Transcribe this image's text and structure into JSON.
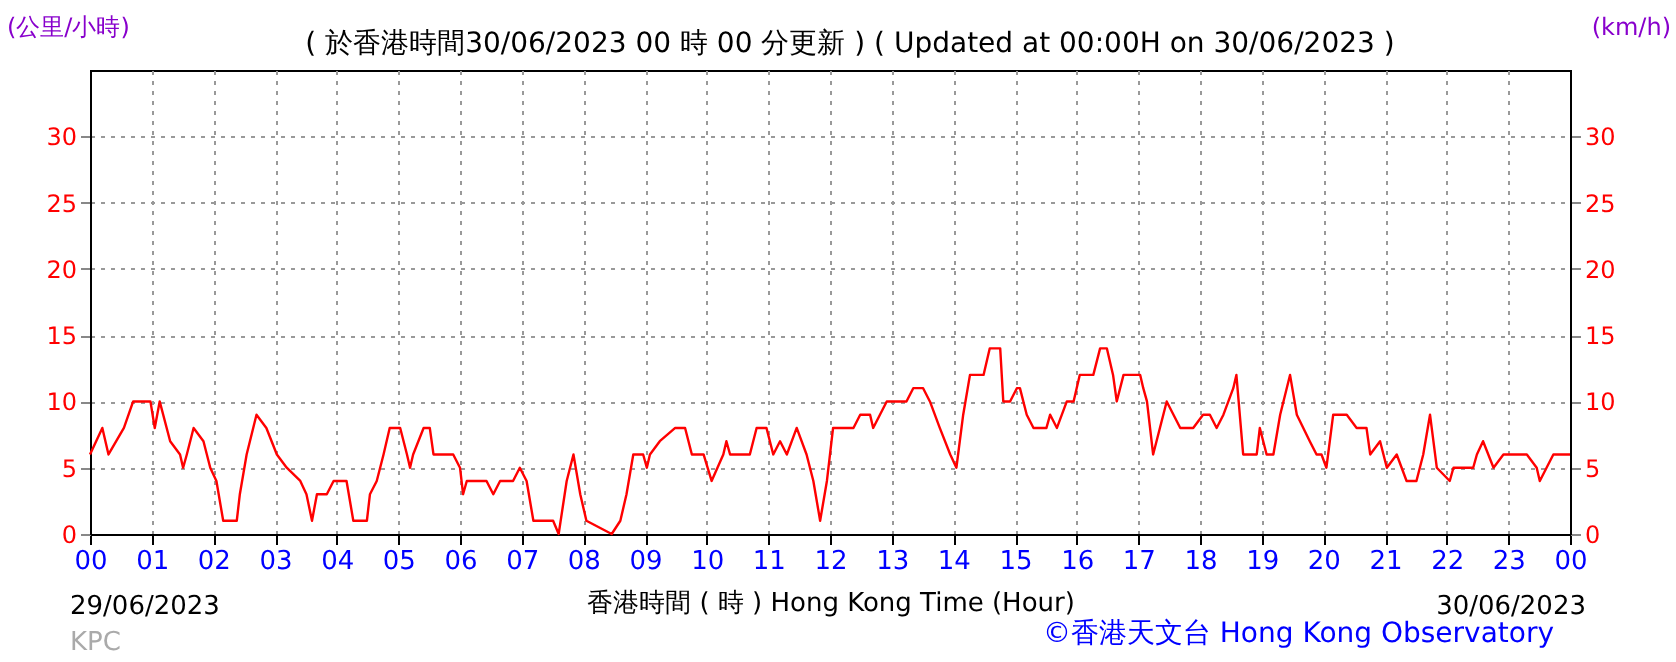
{
  "chart_data": {
    "type": "line",
    "title": "( 於香港時間30/06/2023 00 時 00 分更新 ) ( Updated at 00:00H on 30/06/2023 )",
    "ylabel": "(公里/小時)",
    "y2label": "(km/h)",
    "xlabel": "香港時間 ( 時 )  Hong Kong Time (Hour)",
    "annotations": [
      "29/06/2023",
      "30/06/2023",
      "KPC",
      "©香港天文台 Hong Kong Observatory"
    ],
    "x": [
      0.0,
      0.2,
      0.3,
      0.55,
      0.7,
      0.98,
      1.05,
      1.13,
      1.3,
      1.46,
      1.51,
      1.57,
      1.68,
      1.84,
      1.95,
      2.05,
      2.16,
      2.38,
      2.43,
      2.54,
      2.7,
      2.86,
      3.03,
      3.19,
      3.41,
      3.51,
      3.6,
      3.68,
      3.84,
      3.95,
      4.16,
      4.27,
      4.49,
      4.54,
      4.65,
      4.76,
      4.86,
      5.03,
      5.14,
      5.19,
      5.24,
      5.41,
      5.51,
      5.57,
      5.89,
      6.0,
      6.05,
      6.11,
      6.43,
      6.54,
      6.65,
      6.86,
      6.97,
      7.08,
      7.19,
      7.51,
      7.6,
      7.73,
      7.84,
      7.95,
      8.05,
      8.46,
      8.6,
      8.7,
      8.81,
      8.97,
      9.03,
      9.08,
      9.24,
      9.49,
      9.65,
      9.76,
      9.95,
      10.08,
      10.27,
      10.32,
      10.38,
      10.7,
      10.81,
      10.97,
      11.08,
      11.19,
      11.3,
      11.46,
      11.62,
      11.73,
      11.84,
      11.95,
      12.05,
      12.38,
      12.49,
      12.65,
      12.7,
      12.81,
      12.92,
      13.24,
      13.35,
      13.51,
      13.62,
      13.78,
      13.95,
      14.05,
      14.16,
      14.27,
      14.49,
      14.59,
      14.76,
      14.81,
      14.92,
      15.03,
      15.08,
      15.19,
      15.3,
      15.51,
      15.57,
      15.68,
      15.84,
      15.95,
      16.05,
      16.27,
      16.38,
      16.49,
      16.59,
      16.65,
      16.76,
      17.03,
      17.08,
      17.14,
      17.24,
      17.35,
      17.46,
      17.57,
      17.68,
      17.89,
      18.05,
      18.16,
      18.27,
      18.38,
      18.54,
      18.59,
      18.7,
      18.92,
      18.97,
      19.08,
      19.19,
      19.3,
      19.46,
      19.57,
      19.78,
      19.89,
      19.97,
      20.05,
      20.16,
      20.38,
      20.54,
      20.7,
      20.76,
      20.92,
      21.03,
      21.19,
      21.35,
      21.51,
      21.62,
      21.73,
      21.84,
      22.05,
      22.11,
      22.43,
      22.49,
      22.59,
      22.76,
      22.92,
      23.19,
      23.3,
      23.46,
      23.51,
      23.62,
      23.73,
      24.0
    ],
    "series": [
      {
        "color": "#ff0000",
        "values": [
          6,
          8,
          6,
          8,
          10,
          10,
          8,
          10,
          7,
          6,
          5,
          6,
          8,
          7,
          5,
          4,
          1,
          1,
          3,
          6,
          9,
          8,
          6,
          5,
          4,
          3,
          1,
          3,
          3,
          4,
          4,
          1,
          1,
          3,
          4,
          6,
          8,
          8,
          6,
          5,
          6,
          8,
          8,
          6,
          6,
          5,
          3,
          4,
          4,
          3,
          4,
          4,
          5,
          4,
          1,
          1,
          0,
          4,
          6,
          3,
          1,
          0,
          1,
          3,
          6,
          6,
          5,
          6,
          7,
          8,
          8,
          6,
          6,
          4,
          6,
          7,
          6,
          6,
          8,
          8,
          6,
          7,
          6,
          8,
          6,
          4,
          1,
          4,
          8,
          8,
          9,
          9,
          8,
          9,
          10,
          10,
          11,
          11,
          10,
          8,
          6,
          5,
          9,
          12,
          12,
          14,
          14,
          10,
          10,
          11,
          11,
          9,
          8,
          8,
          9,
          8,
          10,
          10,
          12,
          12,
          14,
          14,
          12,
          10,
          12,
          12,
          11,
          10,
          6,
          8,
          10,
          9,
          8,
          8,
          9,
          9,
          8,
          9,
          11,
          12,
          6,
          6,
          8,
          6,
          6,
          9,
          12,
          9,
          7,
          6,
          6,
          5,
          9,
          9,
          8,
          8,
          6,
          7,
          5,
          6,
          4,
          4,
          6,
          9,
          5,
          4,
          5,
          5,
          6,
          7,
          5,
          6,
          6,
          6,
          5,
          4,
          5,
          6,
          6
        ]
      }
    ],
    "xlim": [
      0,
      24
    ],
    "xticks": [
      {
        "value": 0,
        "label": "00"
      },
      {
        "value": 1,
        "label": "01"
      },
      {
        "value": 2,
        "label": "02"
      },
      {
        "value": 3,
        "label": "03"
      },
      {
        "value": 4,
        "label": "04"
      },
      {
        "value": 5,
        "label": "05"
      },
      {
        "value": 6,
        "label": "06"
      },
      {
        "value": 7,
        "label": "07"
      },
      {
        "value": 8,
        "label": "08"
      },
      {
        "value": 9,
        "label": "09"
      },
      {
        "value": 10,
        "label": "10"
      },
      {
        "value": 11,
        "label": "11"
      },
      {
        "value": 12,
        "label": "12"
      },
      {
        "value": 13,
        "label": "13"
      },
      {
        "value": 14,
        "label": "14"
      },
      {
        "value": 15,
        "label": "15"
      },
      {
        "value": 16,
        "label": "16"
      },
      {
        "value": 17,
        "label": "17"
      },
      {
        "value": 18,
        "label": "18"
      },
      {
        "value": 19,
        "label": "19"
      },
      {
        "value": 20,
        "label": "20"
      },
      {
        "value": 21,
        "label": "21"
      },
      {
        "value": 22,
        "label": "22"
      },
      {
        "value": 23,
        "label": "23"
      },
      {
        "value": 24,
        "label": "00"
      }
    ],
    "ylim": [
      0,
      35
    ],
    "yticks": [
      0,
      5,
      10,
      15,
      20,
      25,
      30
    ],
    "y2lim": [
      0,
      35
    ],
    "y2ticks": [
      0,
      5,
      10,
      15,
      20,
      25,
      30
    ],
    "grid": true,
    "legend": false,
    "marker": "none",
    "line_style": "solid"
  }
}
